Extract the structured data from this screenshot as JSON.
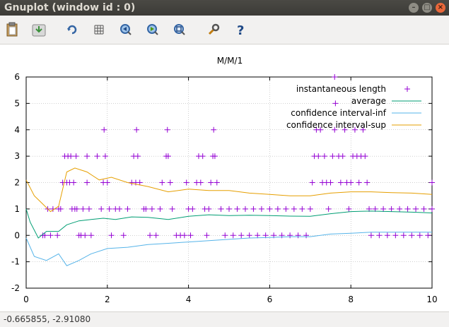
{
  "window": {
    "title": "Gnuplot (window id : 0)"
  },
  "toolbar": {
    "icons": [
      "copy-to-clipboard-icon",
      "export-icon",
      "replot-icon",
      "grid-icon",
      "zoom-previous-icon",
      "zoom-next-icon",
      "autoscale-icon",
      "options-wrench-icon",
      "help-icon"
    ]
  },
  "status": {
    "coordinates": "-0.665855, -2.91080"
  },
  "colors": {
    "instantaneous": "#9400d3",
    "average": "#009e73",
    "ci_inf": "#56b4e9",
    "ci_sup": "#e69f00"
  },
  "chart_data": {
    "type": "scatter",
    "title": "M/M/1",
    "xlabel": "",
    "ylabel": "",
    "xlim": [
      0,
      10
    ],
    "ylim": [
      -2,
      6
    ],
    "xticks": [
      "0",
      "2",
      "4",
      "6",
      "8",
      "10"
    ],
    "yticks": [
      "-2",
      "-1",
      "0",
      "1",
      "2",
      "3",
      "4",
      "5",
      "6"
    ],
    "legend_position": "top-right",
    "grid": true,
    "series": [
      {
        "name": "instantaneous length",
        "style": "points",
        "points": [
          [
            0.41,
            0
          ],
          [
            0.46,
            0
          ],
          [
            0.53,
            1
          ],
          [
            0.6,
            0
          ],
          [
            0.66,
            1
          ],
          [
            0.77,
            0
          ],
          [
            0.8,
            1
          ],
          [
            0.85,
            1
          ],
          [
            0.9,
            2
          ],
          [
            0.95,
            3
          ],
          [
            1.0,
            2
          ],
          [
            1.03,
            3
          ],
          [
            1.07,
            2
          ],
          [
            1.1,
            3
          ],
          [
            1.13,
            1
          ],
          [
            1.17,
            2
          ],
          [
            1.2,
            1
          ],
          [
            1.23,
            3
          ],
          [
            1.25,
            1
          ],
          [
            1.3,
            0
          ],
          [
            1.35,
            0
          ],
          [
            1.4,
            1
          ],
          [
            1.45,
            0
          ],
          [
            1.5,
            2
          ],
          [
            1.5,
            3
          ],
          [
            1.55,
            1
          ],
          [
            1.6,
            0
          ],
          [
            1.75,
            3
          ],
          [
            1.85,
            1
          ],
          [
            1.9,
            2
          ],
          [
            1.92,
            4
          ],
          [
            1.95,
            3
          ],
          [
            2.0,
            2
          ],
          [
            2.05,
            1
          ],
          [
            2.1,
            0
          ],
          [
            2.2,
            1
          ],
          [
            2.3,
            1
          ],
          [
            2.4,
            0
          ],
          [
            2.5,
            1
          ],
          [
            2.6,
            2
          ],
          [
            2.65,
            3
          ],
          [
            2.7,
            2
          ],
          [
            2.72,
            4
          ],
          [
            2.75,
            3
          ],
          [
            2.8,
            2
          ],
          [
            2.9,
            1
          ],
          [
            2.95,
            1
          ],
          [
            3.05,
            0
          ],
          [
            3.1,
            1
          ],
          [
            3.2,
            0
          ],
          [
            3.3,
            1
          ],
          [
            3.35,
            2
          ],
          [
            3.45,
            3
          ],
          [
            3.48,
            4
          ],
          [
            3.5,
            3
          ],
          [
            3.55,
            2
          ],
          [
            3.6,
            1
          ],
          [
            3.7,
            0
          ],
          [
            3.8,
            0
          ],
          [
            3.9,
            0
          ],
          [
            3.95,
            2
          ],
          [
            4.0,
            1
          ],
          [
            4.05,
            0
          ],
          [
            4.1,
            1
          ],
          [
            4.2,
            2
          ],
          [
            4.25,
            3
          ],
          [
            4.3,
            2
          ],
          [
            4.35,
            3
          ],
          [
            4.4,
            1
          ],
          [
            4.45,
            0
          ],
          [
            4.5,
            1
          ],
          [
            4.55,
            2
          ],
          [
            4.6,
            3
          ],
          [
            4.62,
            4
          ],
          [
            4.65,
            3
          ],
          [
            4.7,
            2
          ],
          [
            4.8,
            1
          ],
          [
            4.9,
            0
          ],
          [
            5.0,
            1
          ],
          [
            5.1,
            0
          ],
          [
            5.2,
            1
          ],
          [
            5.3,
            0
          ],
          [
            5.4,
            1
          ],
          [
            5.5,
            0
          ],
          [
            5.6,
            1
          ],
          [
            5.7,
            0
          ],
          [
            5.8,
            1
          ],
          [
            5.9,
            0
          ],
          [
            6.0,
            1
          ],
          [
            6.1,
            0
          ],
          [
            6.2,
            1
          ],
          [
            6.3,
            0
          ],
          [
            6.4,
            1
          ],
          [
            6.5,
            0
          ],
          [
            6.6,
            1
          ],
          [
            6.7,
            0
          ],
          [
            6.8,
            1
          ],
          [
            6.9,
            0
          ],
          [
            7.0,
            1
          ],
          [
            7.05,
            2
          ],
          [
            7.1,
            3
          ],
          [
            7.15,
            4
          ],
          [
            7.2,
            3
          ],
          [
            7.25,
            4
          ],
          [
            7.3,
            2
          ],
          [
            7.35,
            3
          ],
          [
            7.4,
            2
          ],
          [
            7.45,
            1
          ],
          [
            7.5,
            2
          ],
          [
            7.55,
            3
          ],
          [
            7.6,
            4
          ],
          [
            7.62,
            5
          ],
          [
            7.6,
            6
          ],
          [
            7.7,
            3
          ],
          [
            7.75,
            2
          ],
          [
            7.8,
            3
          ],
          [
            7.85,
            4
          ],
          [
            7.9,
            2
          ],
          [
            7.95,
            1
          ],
          [
            8.0,
            2
          ],
          [
            8.05,
            3
          ],
          [
            8.1,
            4
          ],
          [
            8.15,
            3
          ],
          [
            8.2,
            2
          ],
          [
            8.25,
            3
          ],
          [
            8.3,
            4
          ],
          [
            8.35,
            3
          ],
          [
            8.4,
            2
          ],
          [
            8.45,
            1
          ],
          [
            8.5,
            0
          ],
          [
            8.6,
            1
          ],
          [
            8.7,
            0
          ],
          [
            8.8,
            1
          ],
          [
            8.9,
            0
          ],
          [
            9.0,
            1
          ],
          [
            9.1,
            0
          ],
          [
            9.2,
            1
          ],
          [
            9.3,
            0
          ],
          [
            9.4,
            1
          ],
          [
            9.5,
            0
          ],
          [
            9.6,
            1
          ],
          [
            9.7,
            0
          ],
          [
            9.8,
            1
          ],
          [
            9.9,
            0
          ],
          [
            10.0,
            1
          ],
          [
            10.0,
            2
          ]
        ]
      },
      {
        "name": "average",
        "style": "line",
        "points": [
          [
            0,
            1
          ],
          [
            0.1,
            0.5
          ],
          [
            0.3,
            -0.1
          ],
          [
            0.5,
            0.15
          ],
          [
            0.8,
            0.15
          ],
          [
            1.0,
            0.4
          ],
          [
            1.3,
            0.55
          ],
          [
            1.6,
            0.6
          ],
          [
            1.9,
            0.65
          ],
          [
            2.2,
            0.6
          ],
          [
            2.6,
            0.7
          ],
          [
            3.0,
            0.68
          ],
          [
            3.5,
            0.6
          ],
          [
            4.0,
            0.72
          ],
          [
            4.5,
            0.78
          ],
          [
            5.0,
            0.75
          ],
          [
            5.5,
            0.76
          ],
          [
            6.0,
            0.75
          ],
          [
            6.5,
            0.73
          ],
          [
            7.0,
            0.72
          ],
          [
            7.5,
            0.82
          ],
          [
            8.0,
            0.9
          ],
          [
            8.5,
            0.92
          ],
          [
            9.0,
            0.9
          ],
          [
            9.5,
            0.88
          ],
          [
            10,
            0.85
          ]
        ]
      },
      {
        "name": "confidence interval-inf",
        "style": "line",
        "points": [
          [
            0,
            -0.1
          ],
          [
            0.2,
            -0.8
          ],
          [
            0.5,
            -0.95
          ],
          [
            0.8,
            -0.7
          ],
          [
            1.0,
            -1.15
          ],
          [
            1.3,
            -0.95
          ],
          [
            1.6,
            -0.7
          ],
          [
            2.0,
            -0.5
          ],
          [
            2.5,
            -0.45
          ],
          [
            3.0,
            -0.35
          ],
          [
            3.5,
            -0.3
          ],
          [
            4.0,
            -0.25
          ],
          [
            4.5,
            -0.2
          ],
          [
            5.0,
            -0.15
          ],
          [
            5.5,
            -0.1
          ],
          [
            6.0,
            -0.08
          ],
          [
            6.5,
            -0.05
          ],
          [
            7.0,
            -0.05
          ],
          [
            7.5,
            0.05
          ],
          [
            8.0,
            0.08
          ],
          [
            8.5,
            0.12
          ],
          [
            9.0,
            0.12
          ],
          [
            9.5,
            0.12
          ],
          [
            10,
            0.12
          ]
        ]
      },
      {
        "name": "confidence interval-sup",
        "style": "line",
        "points": [
          [
            0,
            2.1
          ],
          [
            0.2,
            1.5
          ],
          [
            0.4,
            1.2
          ],
          [
            0.6,
            0.9
          ],
          [
            0.8,
            1.1
          ],
          [
            1.0,
            2.4
          ],
          [
            1.2,
            2.55
          ],
          [
            1.5,
            2.4
          ],
          [
            1.8,
            2.1
          ],
          [
            2.1,
            2.2
          ],
          [
            2.5,
            2.0
          ],
          [
            3.0,
            1.85
          ],
          [
            3.5,
            1.65
          ],
          [
            4.0,
            1.75
          ],
          [
            4.5,
            1.7
          ],
          [
            5.0,
            1.7
          ],
          [
            5.5,
            1.6
          ],
          [
            6.0,
            1.55
          ],
          [
            6.5,
            1.5
          ],
          [
            7.0,
            1.5
          ],
          [
            7.5,
            1.6
          ],
          [
            8.0,
            1.65
          ],
          [
            8.5,
            1.65
          ],
          [
            9.0,
            1.62
          ],
          [
            9.5,
            1.6
          ],
          [
            10,
            1.55
          ]
        ]
      }
    ]
  }
}
